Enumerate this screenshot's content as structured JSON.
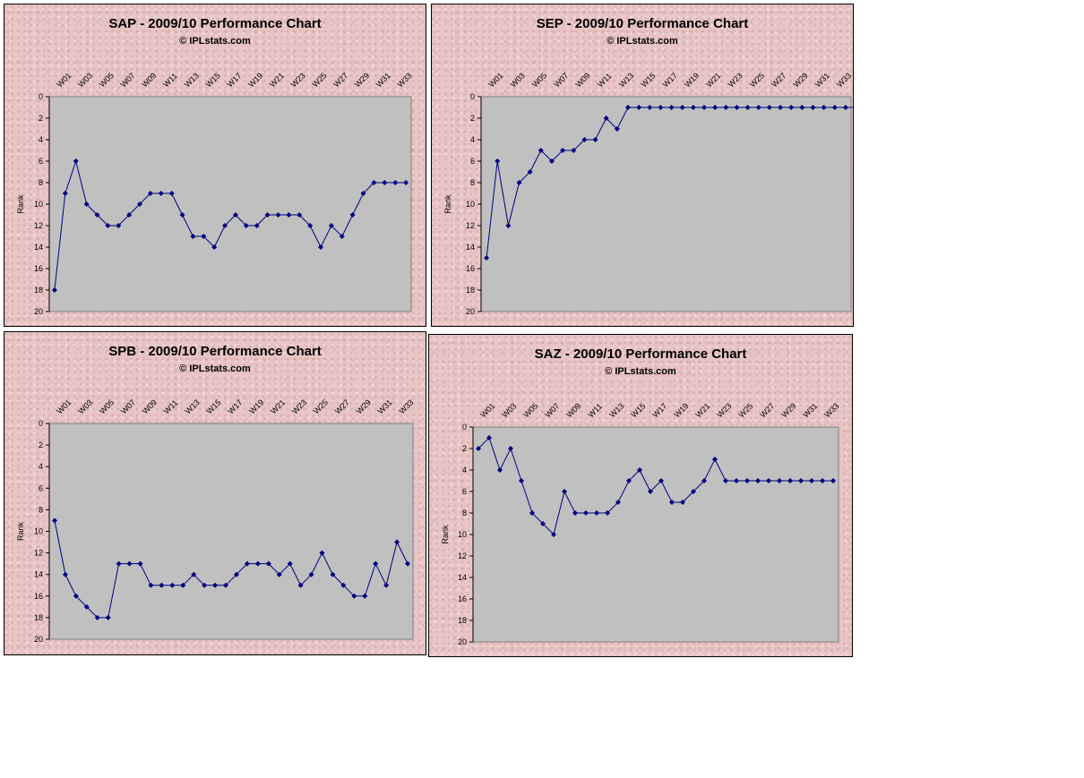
{
  "chart_data": [
    {
      "type": "line",
      "title": "SAP - 2009/10 Performance Chart",
      "subtitle": "© IPLstats.com",
      "ylabel": "Rank",
      "ylim": [
        0,
        20
      ],
      "y_reversed": true,
      "y_ticks": [
        "0",
        "2",
        "4",
        "6",
        "8",
        "10",
        "12",
        "14",
        "16",
        "18",
        "20"
      ],
      "x_tick_labels": [
        "W01",
        "W03",
        "W05",
        "W07",
        "W09",
        "W11",
        "W13",
        "W15",
        "W17",
        "W19",
        "W21",
        "W23",
        "W25",
        "W27",
        "W29",
        "W31",
        "W33"
      ],
      "marker_color": "#000080",
      "plot_background": "#c0c0c0",
      "series": [
        {
          "values": [
            18,
            9,
            6,
            10,
            11,
            12,
            12,
            11,
            10,
            9,
            9,
            9,
            11,
            13,
            13,
            14,
            12,
            11,
            12,
            12,
            11,
            11,
            11,
            11,
            12,
            14,
            12,
            13,
            11,
            9,
            8,
            8,
            8,
            8
          ]
        }
      ]
    },
    {
      "type": "line",
      "title": "SEP - 2009/10 Performance Chart",
      "subtitle": "© IPLstats.com",
      "ylabel": "Rank",
      "ylim": [
        0,
        20
      ],
      "y_reversed": true,
      "y_ticks": [
        "0",
        "2",
        "4",
        "6",
        "8",
        "10",
        "12",
        "14",
        "16",
        "18",
        "20"
      ],
      "x_tick_labels": [
        "W01",
        "W03",
        "W05",
        "W07",
        "W09",
        "W11",
        "W13",
        "W15",
        "W17",
        "W19",
        "W21",
        "W23",
        "W25",
        "W27",
        "W29",
        "W31",
        "W33"
      ],
      "marker_color": "#000080",
      "plot_background": "#c0c0c0",
      "series": [
        {
          "values": [
            15,
            6,
            12,
            8,
            7,
            5,
            6,
            5,
            5,
            4,
            4,
            2,
            3,
            1,
            1,
            1,
            1,
            1,
            1,
            1,
            1,
            1,
            1,
            1,
            1,
            1,
            1,
            1,
            1,
            1,
            1,
            1,
            1,
            1,
            1
          ]
        }
      ]
    },
    {
      "type": "line",
      "title": "SPB - 2009/10 Performance Chart",
      "subtitle": "© IPLstats.com",
      "ylabel": "Rank",
      "ylim": [
        0,
        20
      ],
      "y_reversed": true,
      "y_ticks": [
        "0",
        "2",
        "4",
        "6",
        "8",
        "10",
        "12",
        "14",
        "16",
        "18",
        "20"
      ],
      "x_tick_labels": [
        "W01",
        "W03",
        "W05",
        "W07",
        "W09",
        "W11",
        "W13",
        "W15",
        "W17",
        "W19",
        "W21",
        "W23",
        "W25",
        "W27",
        "W29",
        "W31",
        "W33"
      ],
      "marker_color": "#000080",
      "plot_background": "#c0c0c0",
      "series": [
        {
          "values": [
            9,
            14,
            16,
            17,
            18,
            18,
            13,
            13,
            13,
            15,
            15,
            15,
            15,
            14,
            15,
            15,
            15,
            14,
            13,
            13,
            13,
            14,
            13,
            15,
            14,
            12,
            14,
            15,
            16,
            16,
            13,
            15,
            11,
            13
          ]
        }
      ]
    },
    {
      "type": "line",
      "title": "SAZ - 2009/10 Performance Chart",
      "subtitle": "© IPLstats.com",
      "ylabel": "Rank",
      "ylim": [
        0,
        20
      ],
      "y_reversed": true,
      "y_ticks": [
        "0",
        "2",
        "4",
        "6",
        "8",
        "10",
        "12",
        "14",
        "16",
        "18",
        "20"
      ],
      "x_tick_labels": [
        "W01",
        "W03",
        "W05",
        "W07",
        "W09",
        "W11",
        "W13",
        "W15",
        "W17",
        "W19",
        "W21",
        "W23",
        "W25",
        "W27",
        "W29",
        "W31",
        "W33"
      ],
      "marker_color": "#000080",
      "plot_background": "#c0c0c0",
      "series": [
        {
          "values": [
            2,
            1,
            4,
            2,
            5,
            8,
            9,
            10,
            6,
            8,
            8,
            8,
            8,
            7,
            5,
            4,
            6,
            5,
            7,
            7,
            6,
            5,
            3,
            5,
            5,
            5,
            5,
            5,
            5,
            5,
            5,
            5,
            5,
            5
          ]
        }
      ]
    }
  ]
}
